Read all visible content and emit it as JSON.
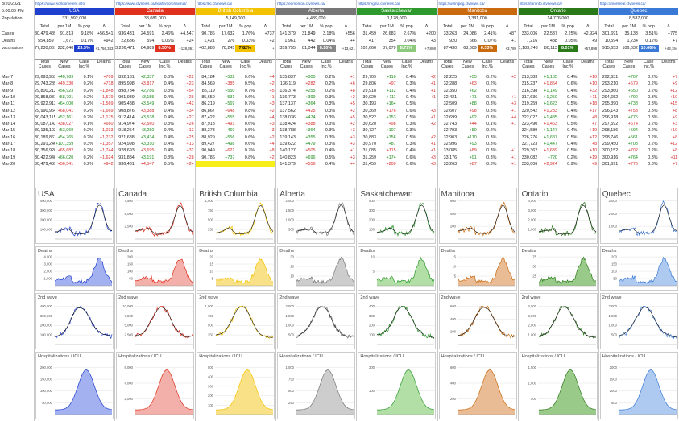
{
  "top": {
    "date": "3/20/2021",
    "time": "5:00:00 PM",
    "population_label": "Population"
  },
  "row_labels": {
    "cases": "Cases",
    "deaths": "Deaths",
    "vaccinations": "Vaccinations"
  },
  "sub_headers": [
    "Total",
    "per 1M",
    "% pop",
    "Δ"
  ],
  "block_headers": [
    "Total Cases",
    "New Cases",
    "Case Inc.%",
    "Deaths"
  ],
  "dates": [
    "Mar-7",
    "Mar-8",
    "Mar-9",
    "Mar-10",
    "Mar-11",
    "Mar-12",
    "Mar-13",
    "Mar-14",
    "Mar-15",
    "Mar-16",
    "Mar-17",
    "Mar-18",
    "Mar-19",
    "Mar-20"
  ],
  "chart_titles": [
    "Deaths",
    "2nd wave",
    "Hospitalizations / ICU"
  ],
  "regions": [
    {
      "name": "USA",
      "link": "https://www.worldometers.info/",
      "color": "#1f3fcf",
      "fill": "#9aa8ee",
      "pop": "331,992,000",
      "cases": [
        "30,479,489",
        "91,813",
        "9.18%",
        "+56,541"
      ],
      "deaths": [
        "554,859",
        "1,671",
        "0.17%",
        "+942"
      ],
      "vacc": [
        "77,230,061",
        "232,640",
        "23.3%",
        "+1,756,343"
      ],
      "hl": "#1f3fcf",
      "hlw": true,
      "rows": [
        [
          "29,693,959",
          "+40,769",
          "0.1%",
          "+709"
        ],
        [
          "29,743,289",
          "+49,330",
          "0.2%",
          "+718"
        ],
        [
          "29,800,212",
          "+56,923",
          "0.2%",
          "+1,848"
        ],
        [
          "29,858,931",
          "+58,701",
          "0.2%",
          "+1,579"
        ],
        [
          "29,922,913",
          "+64,000",
          "0.2%",
          "+1,569"
        ],
        [
          "29,990,954",
          "+68,041",
          "0.2%",
          "+1,669"
        ],
        [
          "30,043,115",
          "+52,161",
          "0.2%",
          "+1,175"
        ],
        [
          "30,087,142",
          "+38,027",
          "0.1%",
          "+660"
        ],
        [
          "30,135,102",
          "+53,960",
          "0.2%",
          "+1,033"
        ],
        [
          "30,189,867",
          "+54,765",
          "0.2%",
          "+1,232"
        ],
        [
          "30,291,246",
          "+101,359",
          "0.3%",
          "+1,357"
        ],
        [
          "30,356,928",
          "+65,682",
          "0.2%",
          "+1,744"
        ],
        [
          "30,422,948",
          "+66,020",
          "0.2%",
          "+1,624"
        ],
        [
          "30,479,489",
          "+56,541",
          "0.2%",
          "+942"
        ]
      ],
      "axis": [
        "400,000",
        "300,000",
        "200,000",
        "100,000"
      ],
      "axd": [
        "4,000",
        "3,000",
        "2,000",
        "1,000"
      ],
      "ax2": [
        "400,000",
        "300,000",
        "200,000",
        "100,000"
      ],
      "axh": [
        "200,000",
        "150,000",
        "100,000",
        "50,000"
      ]
    },
    {
      "name": "Canada",
      "link": "https://www.ctvnews.ca/health/coronavirus/",
      "color": "#e0301e",
      "fill": "#f2a6a0",
      "pop": "38,081,000",
      "cases": [
        "936,431",
        "24,591",
        "2.46%",
        "+4,547"
      ],
      "deaths": [
        "22,636",
        "594",
        "0.06%",
        "+24"
      ],
      "vacc": [
        "3,236,471",
        "84,989",
        "8.50%",
        "+128,361"
      ],
      "hl": "#e0301e",
      "hlw": true,
      "rows": [
        [
          "892,181",
          "+2,337",
          "0.3%",
          "+22"
        ],
        [
          "895,998",
          "+3,817",
          "0.4%",
          "+23"
        ],
        [
          "898,784",
          "+2,786",
          "0.3%",
          "+54"
        ],
        [
          "901,939",
          "+3,155",
          "0.4%",
          "+26"
        ],
        [
          "905,488",
          "+3,549",
          "0.4%",
          "+42"
        ],
        [
          "908,876",
          "+3,388",
          "0.4%",
          "+34"
        ],
        [
          "912,414",
          "+3,538",
          "0.4%",
          "+27"
        ],
        [
          "914,974",
          "+2,560",
          "0.3%",
          "+26"
        ],
        [
          "918,254",
          "+3,280",
          "0.4%",
          "+13"
        ],
        [
          "921,688",
          "+3,434",
          "0.4%",
          "+25"
        ],
        [
          "924,998",
          "+3,310",
          "0.4%",
          "+13"
        ],
        [
          "928,693",
          "+3,695",
          "0.4%",
          "+32"
        ],
        [
          "931,884",
          "+3,191",
          "0.3%",
          "+28"
        ],
        [
          "936,431",
          "+4,547",
          "0.5%",
          "+24"
        ]
      ],
      "axis": [
        "7,500",
        "5,000",
        "2,500"
      ],
      "axd": [
        "200",
        "150",
        "100",
        "50"
      ],
      "ax2": [
        "10,000",
        "7,500",
        "5,000",
        "2,500"
      ],
      "axh": [
        "6,000",
        "4,000",
        "2,000"
      ]
    },
    {
      "name": "British Columbia",
      "link": "https://bc.ctvnews.ca/",
      "color": "#f2c200",
      "fill": "#f8de7a",
      "pop": "5,149,000",
      "cases": [
        "90,786",
        "17,632",
        "1.76%",
        "+737"
      ],
      "deaths": [
        "1,421",
        "276",
        "0.03%",
        "+2"
      ],
      "vacc": [
        "402,883",
        "78,245",
        "7.82%",
        "+"
      ],
      "hl": "#f2c200",
      "hlw": false,
      "rows": [
        [
          "84,184",
          "+532",
          "0.6%",
          "+4"
        ],
        [
          "84,569",
          "+385",
          "0.5%",
          "+2"
        ],
        [
          "85,119",
          "+550",
          "0.7%",
          "+5"
        ],
        [
          "85,650",
          "+531",
          "0.6%",
          "+1"
        ],
        [
          "86,219",
          "+569",
          "0.7%",
          "+3"
        ],
        [
          "86,867",
          "+648",
          "0.8%",
          "+2"
        ],
        [
          "87,422",
          "+555",
          "0.6%",
          "+4"
        ],
        [
          "87,913",
          "+491",
          "0.6%",
          "+3"
        ],
        [
          "88,373",
          "+460",
          "0.5%",
          "+3"
        ],
        [
          "88,929",
          "+556",
          "0.6%",
          "+2"
        ],
        [
          "89,427",
          "+498",
          "0.6%",
          "+4"
        ],
        [
          "90,049",
          "+622",
          "0.7%",
          "+8"
        ],
        [
          "90,786",
          "+737",
          "0.8%",
          "+2"
        ],
        [
          "",
          "",
          "",
          ""
        ]
      ],
      "axis": [
        "1,000",
        "750",
        "500",
        "250"
      ],
      "axd": [
        "20",
        "15",
        "10",
        "5"
      ],
      "ax2": [
        "1,000",
        "750",
        "500",
        "250"
      ],
      "axh": [
        "500",
        "400",
        "300",
        "200",
        "100"
      ]
    },
    {
      "name": "Alberta",
      "link": "https://edmonton.ctvnews.ca/",
      "color": "#777777",
      "fill": "#c8c8c8",
      "pop": "4,439,000",
      "cases": [
        "141,379",
        "31,849",
        "3.18%",
        "+556"
      ],
      "deaths": [
        "1,961",
        "442",
        "0.04%",
        "+4"
      ],
      "vacc": [
        "359,755",
        "81,044",
        "8.10%",
        "+13,621"
      ],
      "hl": "#888888",
      "hlw": true,
      "rows": [
        [
          "135,837",
          "+300",
          "0.2%",
          "+1"
        ],
        [
          "136,119",
          "+282",
          "0.2%",
          "+6"
        ],
        [
          "136,374",
          "+255",
          "0.2%",
          "+8"
        ],
        [
          "136,773",
          "+399",
          "0.3%",
          "+2"
        ],
        [
          "137,137",
          "+364",
          "0.3%",
          "+5"
        ],
        [
          "137,562",
          "+425",
          "0.3%",
          "+2"
        ],
        [
          "138,036",
          "+474",
          "0.3%",
          "+5"
        ],
        [
          "138,424",
          "+388",
          "0.3%",
          "+2"
        ],
        [
          "138,788",
          "+364",
          "0.3%",
          "+3"
        ],
        [
          "139,143",
          "+355",
          "0.3%",
          "+3"
        ],
        [
          "139,622",
          "+479",
          "0.3%",
          "+3"
        ],
        [
          "140,127",
          "+505",
          "0.4%",
          "+1"
        ],
        [
          "140,823",
          "+696",
          "0.5%",
          "+3"
        ],
        [
          "141,379",
          "+556",
          "0.4%",
          "+4"
        ]
      ],
      "axis": [
        "2,000",
        "1,500",
        "1,000",
        "500"
      ],
      "axd": [
        "30",
        "20",
        "10"
      ],
      "ax2": [
        "2,000",
        "1,500",
        "1,000",
        "500"
      ],
      "axh": [
        "1,000",
        "750",
        "500",
        "250"
      ]
    },
    {
      "name": "Saskatchewan",
      "link": "https://regina.ctvnews.ca/",
      "color": "#2e9a2e",
      "fill": "#a9dc9b",
      "pop": "1,178,000",
      "cases": [
        "31,459",
        "26,683",
        "2.67%",
        "+200"
      ],
      "deaths": [
        "417",
        "354",
        "0.04%",
        "+3"
      ],
      "vacc": [
        "102,666",
        "87,079",
        "8.71%",
        "+7,808"
      ],
      "hl": "#8cc97c",
      "hlw": true,
      "rows": [
        [
          "29,709",
          "+116",
          "0.4%",
          "+2"
        ],
        [
          "29,806",
          "+97",
          "0.3%",
          "+1"
        ],
        [
          "29,918",
          "+112",
          "0.4%",
          "+1"
        ],
        [
          "30,029",
          "+111",
          "0.4%",
          "+1"
        ],
        [
          "30,193",
          "+164",
          "0.5%",
          ""
        ],
        [
          "30,369",
          "+176",
          "0.6%",
          "+3"
        ],
        [
          "30,522",
          "+153",
          "0.5%",
          "+1"
        ],
        [
          "30,620",
          "+98",
          "0.3%",
          "+2"
        ],
        [
          "30,727",
          "+107",
          "0.3%",
          ""
        ],
        [
          "30,883",
          "+156",
          "0.5%",
          "+2"
        ],
        [
          "30,970",
          "+87",
          "0.3%",
          "+1"
        ],
        [
          "31,085",
          "+115",
          "0.4%",
          "+1"
        ],
        [
          "31,259",
          "+174",
          "0.6%",
          "+3"
        ],
        [
          "31,459",
          "+200",
          "0.6%",
          "+3"
        ]
      ],
      "axis": [
        "400",
        "300",
        "200",
        "100"
      ],
      "axd": [
        "10",
        "5"
      ],
      "ax2": [
        "400",
        "300",
        "200",
        "100"
      ],
      "axh": [
        "200",
        "100"
      ]
    },
    {
      "name": "Manitoba",
      "link": "https://winnipeg.ctvnews.ca/",
      "color": "#c96a0e",
      "fill": "#e8b589",
      "pop": "1,381,000",
      "cases": [
        "33,263",
        "24,086",
        "2.41%",
        "+87"
      ],
      "deaths": [
        "920",
        "666",
        "0.07%",
        "+1"
      ],
      "vacc": [
        "87,430",
        "63,309",
        "6.33%",
        "+3,789"
      ],
      "hl": "#c96a0e",
      "hlw": true,
      "rows": [
        [
          "32,225",
          "+55",
          "0.2%",
          "+2"
        ],
        [
          "32,288",
          "+63",
          "0.2%",
          ""
        ],
        [
          "32,350",
          "+62",
          "0.2%",
          ""
        ],
        [
          "32,421",
          "+71",
          "0.2%",
          "+1"
        ],
        [
          "32,509",
          "+88",
          "0.3%",
          "+3"
        ],
        [
          "32,607",
          "+98",
          "0.3%",
          "+1"
        ],
        [
          "32,699",
          "+92",
          "0.3%",
          "+4"
        ],
        [
          "32,743",
          "+44",
          "0.1%",
          "+1"
        ],
        [
          "32,793",
          "+50",
          "0.2%",
          ""
        ],
        [
          "32,903",
          "+110",
          "0.3%",
          ""
        ],
        [
          "32,996",
          "+93",
          "0.3%",
          ""
        ],
        [
          "33,085",
          "+89",
          "0.3%",
          "+1"
        ],
        [
          "33,176",
          "+91",
          "0.3%",
          "+1"
        ],
        [
          "33,263",
          "+87",
          "0.3%",
          "+1"
        ]
      ],
      "axis": [
        "600",
        "400",
        "200"
      ],
      "axd": [
        "15",
        "10",
        "5"
      ],
      "ax2": [
        "600",
        "400",
        "200"
      ],
      "axh": [
        "600",
        "400",
        "200"
      ]
    },
    {
      "name": "Ontario",
      "link": "https://toronto.ctvnews.ca/",
      "color": "#2a7a1a",
      "fill": "#8fc47d",
      "pop": "14,776,000",
      "cases": [
        "333,006",
        "22,537",
        "2.25%",
        "+2,924"
      ],
      "deaths": [
        "7,216",
        "488",
        "0.05%",
        "+9"
      ],
      "vacc": [
        "1,183,748",
        "80,113",
        "8.01%",
        "+57,898"
      ],
      "hl": "#2a7a1a",
      "hlw": true,
      "rows": [
        [
          "313,383",
          "+1,165",
          "0.4%",
          "+10"
        ],
        [
          "315,237",
          "+1,854",
          "0.6%",
          "+10"
        ],
        [
          "316,398",
          "+1,149",
          "0.4%",
          "+32"
        ],
        [
          "317,636",
          "+1,250",
          "0.4%",
          "+11"
        ],
        [
          "319,259",
          "+1,623",
          "0.5%",
          "+18"
        ],
        [
          "320,542",
          "+1,283",
          "0.4%",
          "+17"
        ],
        [
          "322,027",
          "+1,485",
          "0.5%",
          "+8"
        ],
        [
          "323,490",
          "+1,463",
          "0.5%",
          "+7"
        ],
        [
          "324,589",
          "+1,147",
          "0.4%",
          "+10"
        ],
        [
          "326,276",
          "+1,687",
          "0.5%",
          "+12"
        ],
        [
          "327,723",
          "+1,447",
          "0.4%",
          "+8"
        ],
        [
          "329,362",
          "+1,639",
          "0.5%",
          "+10"
        ],
        [
          "330,082",
          "+720",
          "0.2%",
          "+19"
        ],
        [
          "333,006",
          "+2,924",
          "0.9%",
          "+9"
        ]
      ],
      "axis": [
        "4,000",
        "3,000",
        "2,000",
        "1,000"
      ],
      "axd": [
        "75",
        "50",
        "25"
      ],
      "ax2": [
        "4,000",
        "3,000",
        "2,000",
        "1,000"
      ],
      "axh": [
        "1,500",
        "1,000",
        "500"
      ]
    },
    {
      "name": "Quebec",
      "link": "https://montreal.ctvnews.ca/",
      "color": "#3a7ad6",
      "fill": "#a6c4f0",
      "pop": "8,587,000",
      "cases": [
        "301,691",
        "35,133",
        "3.51%",
        "+775"
      ],
      "deaths": [
        "10,594",
        "1,234",
        "0.12%",
        "+7"
      ],
      "vacc": [
        "915,653",
        "106,632",
        "10.66%",
        "+43,194"
      ],
      "hl": "#3a7ad6",
      "hlw": true,
      "rows": [
        [
          "292,631",
          "+707",
          "0.2%",
          "+7"
        ],
        [
          "293,210",
          "+579",
          "0.2%",
          "+9"
        ],
        [
          "293,860",
          "+650",
          "0.2%",
          "+12"
        ],
        [
          "294,652",
          "+792",
          "0.3%",
          "+10"
        ],
        [
          "295,390",
          "+738",
          "0.3%",
          "+15"
        ],
        [
          "296,143",
          "+753",
          "0.3%",
          "+8"
        ],
        [
          "296,918",
          "+775",
          "0.3%",
          "+9"
        ],
        [
          "297,592",
          "+674",
          "0.2%",
          "+3"
        ],
        [
          "298,186",
          "+594",
          "0.2%",
          "+10"
        ],
        [
          "298,746",
          "+561",
          "0.2%",
          "+8"
        ],
        [
          "299,450",
          "+703",
          "0.2%",
          "+12"
        ],
        [
          "300,152",
          "+702",
          "0.2%",
          "+8"
        ],
        [
          "300,916",
          "+764",
          "0.3%",
          "+11"
        ],
        [
          "301,691",
          "+775",
          "0.3%",
          "+7"
        ]
      ],
      "axis": [
        "3,000",
        "2,000",
        "1,000"
      ],
      "axd": [
        "200",
        "150",
        "100",
        "50"
      ],
      "ax2": [
        "2,000",
        "1,500",
        "1,000",
        "500"
      ],
      "axh": [
        "2000",
        "1500",
        "1000",
        "500"
      ]
    }
  ]
}
